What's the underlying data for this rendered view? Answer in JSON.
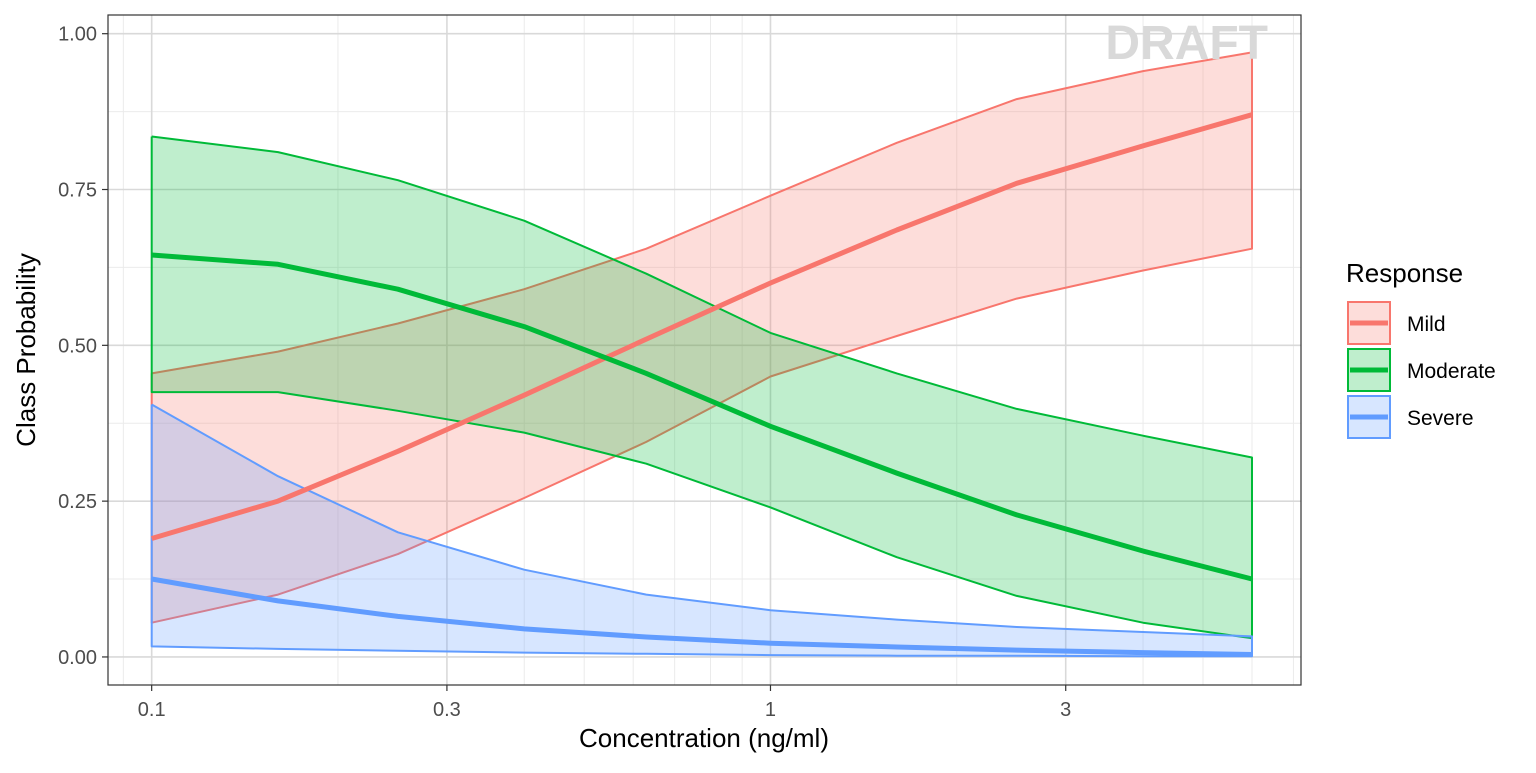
{
  "chart_data": {
    "type": "area",
    "title": "",
    "xlabel": "Concentration (ng/ml)",
    "ylabel": "Class Probability",
    "x_scale": "log10",
    "xlim": [
      0.085,
      7.2
    ],
    "ylim": [
      -0.045,
      1.03
    ],
    "x_ticks": [
      0.1,
      0.3,
      1,
      3
    ],
    "x_tick_labels": [
      "0.1",
      "0.3",
      "1",
      "3"
    ],
    "y_ticks": [
      0,
      0.25,
      0.5,
      0.75,
      1
    ],
    "y_tick_labels": [
      "0.00",
      "0.25",
      "0.50",
      "0.75",
      "1.00"
    ],
    "grid": true,
    "legend": {
      "title": "Response",
      "position": "right"
    },
    "watermark": "DRAFT",
    "x": [
      0.1,
      0.16,
      0.25,
      0.4,
      0.63,
      1.0,
      1.6,
      2.5,
      4.0,
      6.0
    ],
    "series": [
      {
        "name": "Mild",
        "color": "#F8766D",
        "fill": "#F8766D",
        "values": [
          0.19,
          0.25,
          0.33,
          0.42,
          0.51,
          0.6,
          0.685,
          0.76,
          0.82,
          0.87
        ],
        "lower": [
          0.055,
          0.1,
          0.165,
          0.255,
          0.345,
          0.45,
          0.515,
          0.575,
          0.62,
          0.655
        ],
        "upper": [
          0.455,
          0.49,
          0.535,
          0.59,
          0.655,
          0.74,
          0.825,
          0.895,
          0.94,
          0.97
        ]
      },
      {
        "name": "Moderate",
        "color": "#00BA38",
        "fill": "#00BA38",
        "values": [
          0.645,
          0.63,
          0.59,
          0.53,
          0.455,
          0.37,
          0.295,
          0.228,
          0.17,
          0.125
        ],
        "lower": [
          0.425,
          0.425,
          0.395,
          0.36,
          0.31,
          0.24,
          0.16,
          0.098,
          0.055,
          0.03
        ],
        "upper": [
          0.835,
          0.81,
          0.765,
          0.7,
          0.615,
          0.52,
          0.455,
          0.398,
          0.355,
          0.32
        ]
      },
      {
        "name": "Severe",
        "color": "#619CFF",
        "fill": "#619CFF",
        "values": [
          0.125,
          0.09,
          0.065,
          0.045,
          0.032,
          0.022,
          0.016,
          0.011,
          0.007,
          0.004
        ],
        "lower": [
          0.017,
          0.013,
          0.01,
          0.007,
          0.005,
          0.003,
          0.002,
          0.002,
          0.001,
          0.001
        ],
        "upper": [
          0.405,
          0.29,
          0.2,
          0.14,
          0.1,
          0.075,
          0.06,
          0.048,
          0.04,
          0.033
        ]
      }
    ]
  }
}
